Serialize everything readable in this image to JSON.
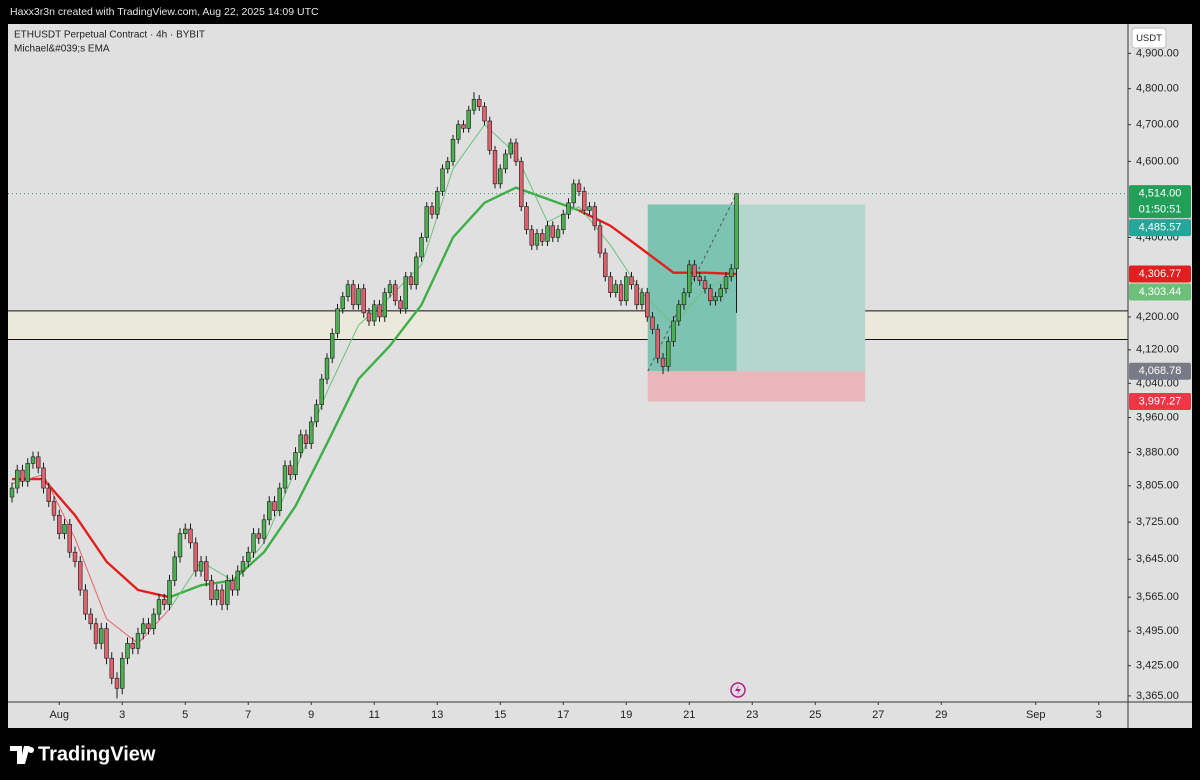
{
  "chart_data": {
    "type": "candlestick",
    "watermark": "Haxx3r3n created with TradingView.com, Aug 22, 2025 14:09 UTC",
    "title": "ETHUSDT Perpetual Contract · 4h · BYBIT",
    "indicator": "Michael&#039;s EMA",
    "currency": "USDT",
    "brand": "TradingView",
    "up_color": "#4caf50",
    "down_color": "#e0606e",
    "open": [
      3780,
      3800,
      3840,
      3815,
      3855,
      3870,
      3845,
      3800,
      3770,
      3740,
      3700,
      3720,
      3660,
      3640,
      3580,
      3530,
      3510,
      3470,
      3500,
      3440,
      3400,
      3380,
      3440,
      3470,
      3460,
      3490,
      3510,
      3500,
      3530,
      3560,
      3550,
      3600,
      3650,
      3700,
      3710,
      3680,
      3620,
      3640,
      3600,
      3560,
      3580,
      3550,
      3600,
      3580,
      3620,
      3640,
      3660,
      3700,
      3690,
      3730,
      3770,
      3750,
      3800,
      3850,
      3830,
      3880,
      3920,
      3900,
      3950,
      3990,
      4050,
      4100,
      4160,
      4220,
      4250,
      4280,
      4230,
      4270,
      4210,
      4190,
      4230,
      4200,
      4260,
      4280,
      4240,
      4220,
      4300,
      4280,
      4350,
      4400,
      4480,
      4460,
      4520,
      4580,
      4600,
      4660,
      4700,
      4690,
      4740,
      4770,
      4750,
      4710,
      4630,
      4540,
      4580,
      4620,
      4650,
      4600,
      4480,
      4420,
      4380,
      4410,
      4390,
      4430,
      4400,
      4420,
      4460,
      4490,
      4540,
      4520,
      4470,
      4480,
      4430,
      4360,
      4300,
      4260,
      4280,
      4240,
      4300,
      4280,
      4230,
      4260,
      4200,
      4170,
      4100,
      4080,
      4140,
      4190,
      4230,
      4260,
      4330,
      4300,
      4290,
      4270,
      4240,
      4250,
      4270,
      4300,
      4320
    ],
    "high": [
      3812,
      3852,
      3852,
      3867,
      3882,
      3882,
      3857,
      3812,
      3782,
      3752,
      3732,
      3732,
      3672,
      3652,
      3592,
      3542,
      3522,
      3512,
      3512,
      3452,
      3412,
      3452,
      3482,
      3482,
      3502,
      3522,
      3522,
      3542,
      3572,
      3572,
      3612,
      3662,
      3712,
      3722,
      3722,
      3692,
      3652,
      3652,
      3612,
      3592,
      3592,
      3612,
      3612,
      3632,
      3652,
      3672,
      3712,
      3712,
      3742,
      3782,
      3782,
      3812,
      3862,
      3862,
      3892,
      3932,
      3932,
      3962,
      4002,
      4062,
      4112,
      4172,
      4232,
      4262,
      4292,
      4292,
      4282,
      4282,
      4222,
      4242,
      4242,
      4272,
      4292,
      4292,
      4252,
      4312,
      4312,
      4362,
      4412,
      4492,
      4492,
      4532,
      4592,
      4612,
      4672,
      4712,
      4712,
      4752,
      4790,
      4782,
      4762,
      4722,
      4642,
      4592,
      4632,
      4662,
      4662,
      4612,
      4492,
      4432,
      4422,
      4422,
      4442,
      4442,
      4432,
      4472,
      4502,
      4552,
      4552,
      4532,
      4492,
      4492,
      4442,
      4372,
      4312,
      4292,
      4292,
      4312,
      4312,
      4292,
      4272,
      4272,
      4212,
      4182,
      4112,
      4152,
      4202,
      4242,
      4272,
      4342,
      4342,
      4312,
      4302,
      4282,
      4262,
      4282,
      4312,
      4332,
      4514
    ],
    "low": [
      3768,
      3788,
      3803,
      3803,
      3843,
      3833,
      3788,
      3758,
      3728,
      3688,
      3688,
      3648,
      3628,
      3568,
      3518,
      3498,
      3458,
      3458,
      3428,
      3388,
      3360,
      3368,
      3428,
      3448,
      3448,
      3478,
      3488,
      3488,
      3518,
      3538,
      3538,
      3588,
      3638,
      3688,
      3668,
      3608,
      3608,
      3588,
      3548,
      3548,
      3538,
      3538,
      3568,
      3568,
      3608,
      3628,
      3648,
      3678,
      3678,
      3718,
      3738,
      3738,
      3788,
      3818,
      3818,
      3868,
      3888,
      3888,
      3938,
      3978,
      4038,
      4088,
      4148,
      4208,
      4238,
      4218,
      4218,
      4198,
      4178,
      4178,
      4188,
      4188,
      4248,
      4228,
      4208,
      4208,
      4268,
      4268,
      4338,
      4388,
      4448,
      4448,
      4508,
      4568,
      4588,
      4648,
      4678,
      4678,
      4728,
      4738,
      4698,
      4618,
      4528,
      4528,
      4568,
      4608,
      4588,
      4468,
      4408,
      4368,
      4368,
      4378,
      4378,
      4388,
      4388,
      4408,
      4448,
      4478,
      4508,
      4458,
      4458,
      4418,
      4348,
      4288,
      4248,
      4248,
      4228,
      4228,
      4268,
      4218,
      4218,
      4188,
      4158,
      4088,
      4062,
      4068,
      4128,
      4178,
      4218,
      4248,
      4288,
      4278,
      4258,
      4228,
      4228,
      4238,
      4258,
      4288,
      4210
    ],
    "close": [
      3800,
      3840,
      3815,
      3855,
      3870,
      3845,
      3800,
      3770,
      3740,
      3700,
      3720,
      3660,
      3640,
      3580,
      3530,
      3510,
      3470,
      3500,
      3440,
      3400,
      3380,
      3440,
      3470,
      3460,
      3490,
      3510,
      3500,
      3530,
      3560,
      3550,
      3600,
      3650,
      3700,
      3710,
      3680,
      3620,
      3640,
      3600,
      3560,
      3580,
      3550,
      3600,
      3580,
      3620,
      3640,
      3660,
      3700,
      3690,
      3730,
      3770,
      3750,
      3800,
      3850,
      3830,
      3880,
      3920,
      3900,
      3950,
      3990,
      4050,
      4100,
      4160,
      4220,
      4250,
      4280,
      4230,
      4270,
      4210,
      4190,
      4230,
      4200,
      4260,
      4280,
      4240,
      4220,
      4300,
      4280,
      4350,
      4400,
      4480,
      4460,
      4520,
      4580,
      4600,
      4660,
      4700,
      4690,
      4740,
      4770,
      4750,
      4710,
      4630,
      4540,
      4580,
      4620,
      4650,
      4600,
      4480,
      4420,
      4380,
      4410,
      4390,
      4430,
      4400,
      4420,
      4460,
      4490,
      4540,
      4520,
      4470,
      4480,
      4430,
      4360,
      4300,
      4260,
      4280,
      4240,
      4300,
      4280,
      4230,
      4260,
      4200,
      4170,
      4100,
      4080,
      4140,
      4190,
      4230,
      4260,
      4330,
      4300,
      4290,
      4270,
      4240,
      4250,
      4270,
      4300,
      4320,
      4514
    ],
    "price_line": {
      "value": 4514,
      "label": "4,514.00",
      "countdown": "01:50:51",
      "color": "#22a05a"
    },
    "lines": [
      {
        "color": "#e31e1e",
        "width": 2.4,
        "x": [
          0,
          6,
          12,
          18,
          24,
          30,
          36,
          42,
          48,
          54,
          60,
          66,
          72,
          78,
          84,
          90,
          96,
          102,
          108,
          114,
          120,
          126,
          132,
          138
        ],
        "values": [
          3820,
          3820,
          3740,
          3640,
          3580,
          3565,
          null,
          null,
          null,
          null,
          null,
          null,
          null,
          null,
          null,
          null,
          null,
          null,
          4470,
          4430,
          4370,
          4310,
          4310,
          4306.77
        ],
        "value_labels": [
          null,
          null,
          null,
          null,
          null,
          null,
          null,
          null,
          null,
          null,
          null,
          null,
          null,
          null,
          null,
          null,
          null,
          null,
          null,
          null,
          null,
          null,
          null,
          "4,306.77"
        ]
      },
      {
        "color": "#3fae49",
        "width": 2.4,
        "x": [
          0,
          6,
          12,
          18,
          24,
          30,
          36,
          42,
          48,
          54,
          60,
          66,
          72,
          78,
          84,
          90,
          96,
          102,
          108,
          114,
          120,
          126,
          132,
          138
        ],
        "values": [
          null,
          null,
          null,
          null,
          null,
          3565,
          3590,
          3600,
          3660,
          3760,
          3900,
          4050,
          4130,
          4230,
          4400,
          4490,
          4530,
          4500,
          4470,
          null,
          null,
          null,
          null,
          null
        ]
      },
      {
        "color": "#e8606a",
        "width": 1,
        "x": [
          0,
          6,
          12,
          18,
          24,
          30,
          36,
          42,
          48,
          54,
          60,
          66,
          72,
          78,
          84,
          90,
          96,
          102,
          108,
          114,
          120,
          126,
          132,
          138
        ],
        "values": [
          3810,
          3830,
          3690,
          3520,
          3470,
          3540,
          null,
          null,
          null,
          null,
          null,
          null,
          null,
          null,
          null,
          null,
          null,
          null,
          null,
          null,
          null,
          null,
          null,
          null
        ]
      },
      {
        "color": "#6cc07a",
        "width": 1,
        "x": [
          0,
          6,
          12,
          18,
          24,
          30,
          36,
          42,
          48,
          54,
          60,
          66,
          72,
          78,
          84,
          90,
          96,
          102,
          108,
          114,
          120,
          126,
          132,
          138
        ],
        "values": [
          null,
          null,
          null,
          null,
          null,
          3540,
          3640,
          3600,
          3680,
          3840,
          4020,
          4180,
          4250,
          4330,
          4580,
          4700,
          4620,
          4440,
          4480,
          4380,
          4260,
          4180,
          4270,
          4303.44
        ],
        "value_labels": [
          null,
          null,
          null,
          null,
          null,
          null,
          null,
          null,
          null,
          null,
          null,
          null,
          null,
          null,
          null,
          null,
          null,
          null,
          null,
          null,
          null,
          null,
          null,
          "4,303.44"
        ]
      }
    ],
    "zone": {
      "top": 4215,
      "bottom": 4145
    },
    "position": {
      "x": [
        121.1,
        162.5
      ],
      "target": {
        "value": 4485.57,
        "label": "4,485.57",
        "color": "#26a69a"
      },
      "entry": {
        "value": 4068.78,
        "label": "4,068.78",
        "color": "#787b86"
      },
      "stop": {
        "value": 3997.27,
        "label": "3,997.27",
        "color": "#f23645"
      }
    },
    "log_scale": true,
    "xlim": [
      -0.76,
      212.57
    ],
    "ylim": [
      3353,
      4985
    ],
    "xticks": [
      {
        "value": 9,
        "label": "Aug"
      },
      {
        "value": 21,
        "label": "3"
      },
      {
        "value": 33,
        "label": "5"
      },
      {
        "value": 45,
        "label": "7"
      },
      {
        "value": 57,
        "label": "9"
      },
      {
        "value": 69,
        "label": "11"
      },
      {
        "value": 81,
        "label": "13"
      },
      {
        "value": 93,
        "label": "15"
      },
      {
        "value": 105,
        "label": "17"
      },
      {
        "value": 117,
        "label": "19"
      },
      {
        "value": 129,
        "label": "21"
      },
      {
        "value": 141,
        "label": "23"
      },
      {
        "value": 153,
        "label": "25"
      },
      {
        "value": 165,
        "label": "27"
      },
      {
        "value": 177,
        "label": "29"
      },
      {
        "value": 195,
        "label": "Sep"
      },
      {
        "value": 207,
        "label": "3"
      }
    ],
    "yticks": [
      {
        "value": 3365,
        "label": "3,365.00"
      },
      {
        "value": 3425,
        "label": "3,425.00"
      },
      {
        "value": 3495,
        "label": "3,495.00"
      },
      {
        "value": 3565,
        "label": "3,565.00"
      },
      {
        "value": 3645,
        "label": "3,645.00"
      },
      {
        "value": 3725,
        "label": "3,725.00"
      },
      {
        "value": 3805,
        "label": "3,805.00"
      },
      {
        "value": 3880,
        "label": "3,880.00"
      },
      {
        "value": 3960,
        "label": "3,960.00"
      },
      {
        "value": 4040,
        "label": "4,040.00"
      },
      {
        "value": 4120,
        "label": "4,120.00"
      },
      {
        "value": 4200,
        "label": "4,200.00"
      },
      {
        "value": 4400,
        "label": "4,400.00"
      },
      {
        "value": 4600,
        "label": "4,600.00"
      },
      {
        "value": 4700,
        "label": "4,700.00"
      },
      {
        "value": 4800,
        "label": "4,800.00"
      },
      {
        "value": 4900,
        "label": "4,900.00"
      }
    ]
  }
}
